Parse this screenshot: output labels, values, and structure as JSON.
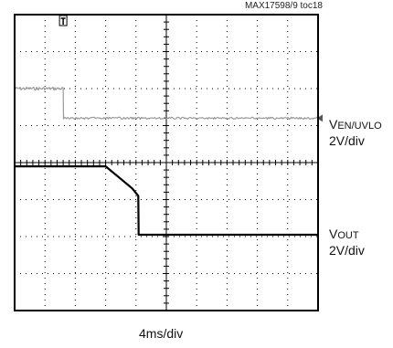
{
  "figure_tag": "MAX17598/9 toc18",
  "chart_data": {
    "type": "line",
    "title": "",
    "grid": true,
    "divisions": {
      "x": 10,
      "y": 8
    },
    "x_scale_label": "4ms/div",
    "xlim": [
      0,
      40
    ],
    "x_unit": "ms",
    "ylim": [
      0,
      8
    ],
    "y_unit": "div",
    "series": [
      {
        "name": "VEN/UVLO",
        "label_main": "V",
        "label_sub": "EN/UVLO",
        "scale": "2V/div",
        "color": "#9a9a9a",
        "noisy": true,
        "x": [
          0,
          6.4,
          6.45,
          40
        ],
        "y": [
          6.0,
          6.0,
          5.2,
          5.2
        ]
      },
      {
        "name": "VOUT",
        "label_main": "V",
        "label_sub": "OUT",
        "scale": "2V/div",
        "color": "#000000",
        "noisy": false,
        "x": [
          0,
          12.0,
          15.5,
          16.3,
          16.35,
          40
        ],
        "y": [
          3.9,
          3.9,
          3.3,
          3.1,
          2.05,
          2.05
        ]
      }
    ],
    "markers": {
      "trigger": {
        "symbol": "T",
        "x": 6.4
      },
      "channel_arrow": {
        "y": 5.2
      }
    }
  }
}
